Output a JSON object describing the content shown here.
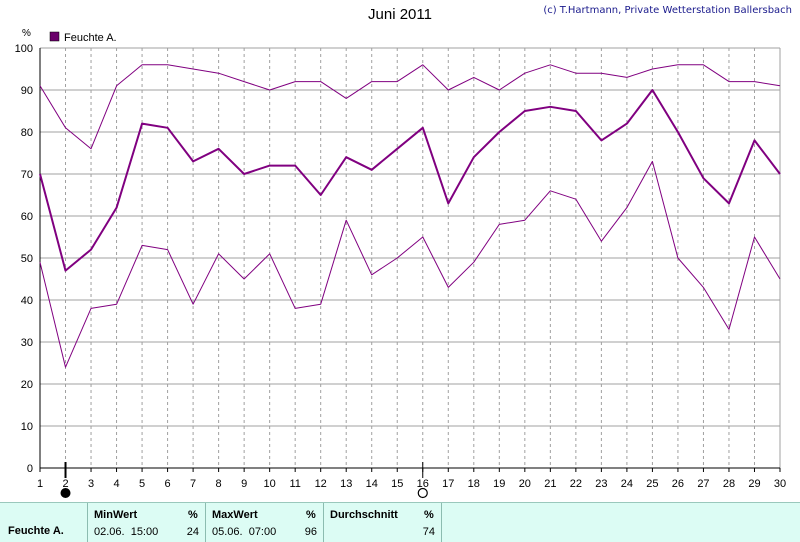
{
  "title": "Juni 2011",
  "copyright": "(c) T.Hartmann, Private Wetterstation Ballersbach",
  "legend_label": "Feuchte A.",
  "y_unit": "%",
  "colors": {
    "series": "#800080",
    "grid": "#a0a0a0",
    "legend_box": "#6a006a",
    "stats_bg": "#dcfcf4"
  },
  "chart_data": {
    "type": "line",
    "title": "Juni 2011",
    "x": [
      1,
      2,
      3,
      4,
      5,
      6,
      7,
      8,
      9,
      10,
      11,
      12,
      13,
      14,
      15,
      16,
      17,
      18,
      19,
      20,
      21,
      22,
      23,
      24,
      25,
      26,
      27,
      28,
      29,
      30
    ],
    "xlim": [
      1,
      30
    ],
    "ylim": [
      0,
      100
    ],
    "y_ticks": [
      0,
      10,
      20,
      30,
      40,
      50,
      60,
      70,
      80,
      90,
      100
    ],
    "ylabel": "%",
    "grid": true,
    "legend": "top-left",
    "series": [
      {
        "name": "Feuchte A.",
        "role": "average",
        "values": [
          70,
          47,
          52,
          62,
          82,
          81,
          73,
          76,
          70,
          72,
          72,
          65,
          74,
          71,
          76,
          81,
          63,
          74,
          80,
          85,
          86,
          85,
          78,
          82,
          90,
          80,
          69,
          63,
          78,
          70
        ]
      },
      {
        "role": "max",
        "values": [
          91,
          81,
          76,
          91,
          96,
          96,
          95,
          94,
          92,
          90,
          92,
          92,
          88,
          92,
          92,
          96,
          90,
          93,
          90,
          94,
          96,
          94,
          94,
          93,
          95,
          96,
          96,
          92,
          92,
          91
        ]
      },
      {
        "role": "min",
        "values": [
          49,
          24,
          38,
          39,
          53,
          52,
          39,
          51,
          45,
          51,
          38,
          39,
          59,
          46,
          50,
          55,
          43,
          49,
          58,
          59,
          66,
          64,
          54,
          62,
          73,
          50,
          43,
          33,
          55,
          45
        ]
      }
    ],
    "markers": {
      "filled_circle_day": 2,
      "open_circle_day": 16
    }
  },
  "stats": {
    "row_label": "Feuchte A.",
    "min": {
      "header": "MinWert",
      "unit": "%",
      "date_time": "02.06.  15:00",
      "value": "24"
    },
    "max": {
      "header": "MaxWert",
      "unit": "%",
      "date_time": "05.06.  07:00",
      "value": "96"
    },
    "avg": {
      "header": "Durchschnitt",
      "unit": "%",
      "value": "74"
    }
  }
}
